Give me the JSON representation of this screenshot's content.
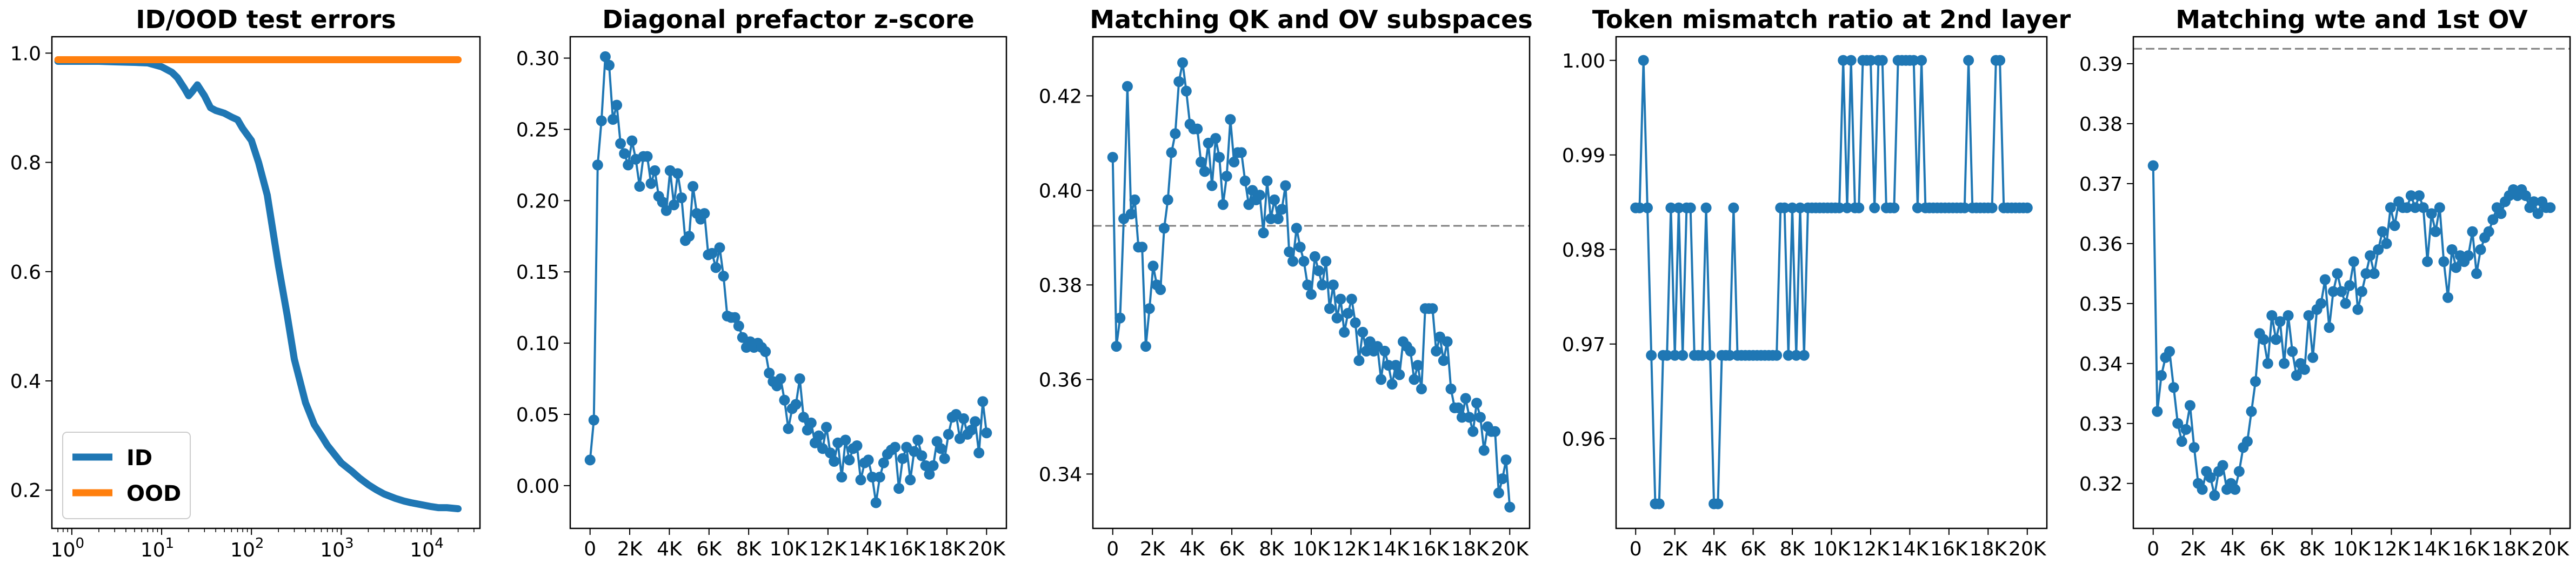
{
  "chart_data": [
    {
      "type": "line",
      "title": "ID/OOD test errors",
      "xscale": "log",
      "xlim": [
        0.6,
        35000
      ],
      "ylim": [
        0.13,
        1.03
      ],
      "yticks": [
        0.2,
        0.4,
        0.6,
        0.8,
        1.0
      ],
      "ytick_labels": [
        "0.2",
        "0.4",
        "0.6",
        "0.8",
        "1.0"
      ],
      "xticks": [
        1,
        10,
        100,
        1000,
        10000
      ],
      "xtick_labels": [
        [
          "10",
          "0"
        ],
        [
          "10",
          "1"
        ],
        [
          "10",
          "2"
        ],
        [
          "10",
          "3"
        ],
        [
          "10",
          "4"
        ]
      ],
      "legend": "lower-left",
      "series": [
        {
          "name": "ID",
          "color": "#1f77b4",
          "x": [
            0.7,
            1,
            2,
            3,
            5,
            7,
            10,
            13,
            15,
            18,
            20,
            22,
            25,
            30,
            35,
            40,
            50,
            60,
            70,
            80,
            100,
            120,
            150,
            200,
            250,
            300,
            400,
            500,
            600,
            700,
            800,
            1000,
            1300,
            1600,
            2000,
            2500,
            3000,
            4000,
            5000,
            6000,
            8000,
            10000,
            12000,
            15000,
            20000
          ],
          "y": [
            0.985,
            0.985,
            0.985,
            0.984,
            0.983,
            0.982,
            0.975,
            0.965,
            0.955,
            0.935,
            0.922,
            0.93,
            0.942,
            0.922,
            0.9,
            0.895,
            0.89,
            0.883,
            0.878,
            0.862,
            0.84,
            0.8,
            0.74,
            0.61,
            0.52,
            0.44,
            0.36,
            0.32,
            0.3,
            0.282,
            0.27,
            0.25,
            0.235,
            0.222,
            0.21,
            0.2,
            0.193,
            0.185,
            0.18,
            0.177,
            0.173,
            0.17,
            0.168,
            0.168,
            0.166
          ]
        },
        {
          "name": "OOD",
          "color": "#ff7f0e",
          "x": [
            0.7,
            1,
            10,
            100,
            1000,
            10000,
            20000
          ],
          "y": [
            0.988,
            0.988,
            0.988,
            0.988,
            0.988,
            0.988,
            0.988
          ]
        }
      ]
    },
    {
      "type": "line",
      "title": "Diagonal prefactor z-score",
      "color": "#1f77b4",
      "xlim": [
        -1000,
        21000
      ],
      "ylim": [
        -0.03,
        0.315
      ],
      "yticks": [
        0.0,
        0.05,
        0.1,
        0.15,
        0.2,
        0.25,
        0.3
      ],
      "ytick_labels": [
        "0.00",
        "0.05",
        "0.10",
        "0.15",
        "0.20",
        "0.25",
        "0.30"
      ],
      "xticks": [
        0,
        2000,
        4000,
        6000,
        8000,
        10000,
        12000,
        14000,
        16000,
        18000,
        20000
      ],
      "xtick_labels": [
        "0",
        "2K",
        "4K",
        "6K",
        "8K",
        "10K",
        "12K",
        "14K",
        "16K",
        "18K",
        "20K"
      ],
      "y": [
        0.018,
        0.046,
        0.225,
        0.256,
        0.301,
        0.295,
        0.257,
        0.267,
        0.24,
        0.233,
        0.225,
        0.242,
        0.229,
        0.21,
        0.231,
        0.231,
        0.212,
        0.221,
        0.203,
        0.199,
        0.193,
        0.221,
        0.197,
        0.219,
        0.202,
        0.172,
        0.175,
        0.21,
        0.191,
        0.187,
        0.191,
        0.162,
        0.163,
        0.153,
        0.167,
        0.147,
        0.119,
        0.118,
        0.118,
        0.112,
        0.104,
        0.097,
        0.101,
        0.097,
        0.1,
        0.097,
        0.094,
        0.079,
        0.073,
        0.07,
        0.075,
        0.06,
        0.04,
        0.054,
        0.057,
        0.075,
        0.048,
        0.039,
        0.044,
        0.03,
        0.035,
        0.026,
        0.041,
        0.023,
        0.017,
        0.03,
        0.006,
        0.032,
        0.018,
        0.026,
        0.028,
        0.004,
        0.016,
        0.018,
        0.006,
        -0.012,
        0.006,
        0.016,
        0.022,
        0.025,
        0.027,
        -0.002,
        0.019,
        0.027,
        0.004,
        0.024,
        0.032,
        0.021,
        0.014,
        0.008,
        0.014,
        0.031,
        0.026,
        0.019,
        0.036,
        0.048,
        0.05,
        0.033,
        0.047,
        0.036,
        0.039,
        0.045,
        0.023,
        0.059,
        0.037
      ]
    },
    {
      "type": "line",
      "title": "Matching QK and OV subspaces",
      "color": "#1f77b4",
      "xlim": [
        -1000,
        21000
      ],
      "ylim": [
        0.3285,
        0.4325
      ],
      "reference_line": 0.3925,
      "yticks": [
        0.34,
        0.36,
        0.38,
        0.4,
        0.42
      ],
      "ytick_labels": [
        "0.34",
        "0.36",
        "0.38",
        "0.40",
        "0.42"
      ],
      "xticks": [
        0,
        2000,
        4000,
        6000,
        8000,
        10000,
        12000,
        14000,
        16000,
        18000,
        20000
      ],
      "xtick_labels": [
        "0",
        "2K",
        "4K",
        "6K",
        "8K",
        "10K",
        "12K",
        "14K",
        "16K",
        "18K",
        "20K"
      ],
      "y": [
        0.407,
        0.367,
        0.373,
        0.394,
        0.422,
        0.395,
        0.398,
        0.388,
        0.388,
        0.367,
        0.375,
        0.384,
        0.38,
        0.379,
        0.392,
        0.398,
        0.408,
        0.412,
        0.423,
        0.427,
        0.421,
        0.414,
        0.413,
        0.413,
        0.406,
        0.404,
        0.41,
        0.401,
        0.411,
        0.407,
        0.397,
        0.403,
        0.415,
        0.406,
        0.408,
        0.408,
        0.402,
        0.397,
        0.4,
        0.398,
        0.399,
        0.391,
        0.402,
        0.394,
        0.398,
        0.394,
        0.396,
        0.401,
        0.387,
        0.385,
        0.392,
        0.388,
        0.385,
        0.38,
        0.378,
        0.386,
        0.383,
        0.38,
        0.385,
        0.375,
        0.38,
        0.373,
        0.377,
        0.37,
        0.374,
        0.377,
        0.372,
        0.364,
        0.37,
        0.366,
        0.368,
        0.366,
        0.367,
        0.36,
        0.366,
        0.363,
        0.359,
        0.363,
        0.361,
        0.368,
        0.367,
        0.366,
        0.36,
        0.363,
        0.358,
        0.375,
        0.375,
        0.375,
        0.366,
        0.369,
        0.364,
        0.368,
        0.358,
        0.354,
        0.354,
        0.352,
        0.356,
        0.352,
        0.349,
        0.355,
        0.352,
        0.345,
        0.35,
        0.349,
        0.349,
        0.336,
        0.339,
        0.343,
        0.333
      ]
    },
    {
      "type": "line",
      "title": "Token mismatch ratio at 2nd layer",
      "color": "#1f77b4",
      "xlim": [
        -1000,
        21000
      ],
      "ylim": [
        0.9505,
        1.0025
      ],
      "yticks": [
        0.96,
        0.97,
        0.98,
        0.99,
        1.0
      ],
      "ytick_labels": [
        "0.96",
        "0.97",
        "0.98",
        "0.99",
        "1.00"
      ],
      "xticks": [
        0,
        2000,
        4000,
        6000,
        8000,
        10000,
        12000,
        14000,
        16000,
        18000,
        20000
      ],
      "xtick_labels": [
        "0",
        "2K",
        "4K",
        "6K",
        "8K",
        "10K",
        "12K",
        "14K",
        "16K",
        "18K",
        "20K"
      ],
      "y": [
        0.9844,
        0.9844,
        1.0,
        0.9844,
        0.9688,
        0.9531,
        0.9531,
        0.9688,
        0.9688,
        0.9844,
        0.9688,
        0.9844,
        0.9688,
        0.9844,
        0.9844,
        0.9688,
        0.9688,
        0.9688,
        0.9844,
        0.9688,
        0.9531,
        0.9531,
        0.9688,
        0.9688,
        0.9688,
        0.9844,
        0.9688,
        0.9688,
        0.9688,
        0.9688,
        0.9688,
        0.9688,
        0.9688,
        0.9688,
        0.9688,
        0.9688,
        0.9688,
        0.9844,
        0.9844,
        0.9688,
        0.9844,
        0.9688,
        0.9844,
        0.9688,
        0.9844,
        0.9844,
        0.9844,
        0.9844,
        0.9844,
        0.9844,
        0.9844,
        0.9844,
        0.9844,
        1.0,
        0.9844,
        1.0,
        0.9844,
        0.9844,
        1.0,
        1.0,
        1.0,
        0.9844,
        1.0,
        1.0,
        0.9844,
        0.9844,
        0.9844,
        1.0,
        1.0,
        1.0,
        1.0,
        1.0,
        0.9844,
        1.0,
        0.9844,
        0.9844,
        0.9844,
        0.9844,
        0.9844,
        0.9844,
        0.9844,
        0.9844,
        0.9844,
        0.9844,
        0.9844,
        1.0,
        0.9844,
        0.9844,
        0.9844,
        0.9844,
        0.9844,
        0.9844,
        1.0,
        1.0,
        0.9844,
        0.9844,
        0.9844,
        0.9844,
        0.9844,
        0.9844,
        0.9844
      ]
    },
    {
      "type": "line",
      "title": "Matching wte and 1st OV",
      "color": "#1f77b4",
      "xlim": [
        -1000,
        21000
      ],
      "ylim": [
        0.3125,
        0.3945
      ],
      "reference_line": 0.3925,
      "yticks": [
        0.32,
        0.33,
        0.34,
        0.35,
        0.36,
        0.37,
        0.38,
        0.39
      ],
      "ytick_labels": [
        "0.32",
        "0.33",
        "0.34",
        "0.35",
        "0.36",
        "0.37",
        "0.38",
        "0.39"
      ],
      "xticks": [
        0,
        2000,
        4000,
        6000,
        8000,
        10000,
        12000,
        14000,
        16000,
        18000,
        20000
      ],
      "xtick_labels": [
        "0",
        "2K",
        "4K",
        "6K",
        "8K",
        "10K",
        "12K",
        "14K",
        "16K",
        "18K",
        "20K"
      ],
      "y": [
        0.373,
        0.332,
        0.338,
        0.341,
        0.342,
        0.336,
        0.33,
        0.327,
        0.329,
        0.333,
        0.326,
        0.32,
        0.319,
        0.322,
        0.321,
        0.318,
        0.322,
        0.323,
        0.319,
        0.32,
        0.319,
        0.322,
        0.326,
        0.327,
        0.332,
        0.337,
        0.345,
        0.344,
        0.34,
        0.348,
        0.344,
        0.347,
        0.34,
        0.348,
        0.342,
        0.338,
        0.34,
        0.339,
        0.348,
        0.341,
        0.349,
        0.35,
        0.354,
        0.346,
        0.352,
        0.355,
        0.352,
        0.35,
        0.353,
        0.357,
        0.349,
        0.352,
        0.355,
        0.358,
        0.355,
        0.359,
        0.362,
        0.36,
        0.366,
        0.363,
        0.367,
        0.366,
        0.366,
        0.368,
        0.366,
        0.368,
        0.366,
        0.357,
        0.365,
        0.362,
        0.366,
        0.357,
        0.351,
        0.359,
        0.356,
        0.358,
        0.357,
        0.358,
        0.362,
        0.355,
        0.359,
        0.361,
        0.362,
        0.364,
        0.366,
        0.365,
        0.367,
        0.368,
        0.369,
        0.368,
        0.369,
        0.368,
        0.366,
        0.367,
        0.365,
        0.367,
        0.366,
        0.366
      ]
    }
  ]
}
